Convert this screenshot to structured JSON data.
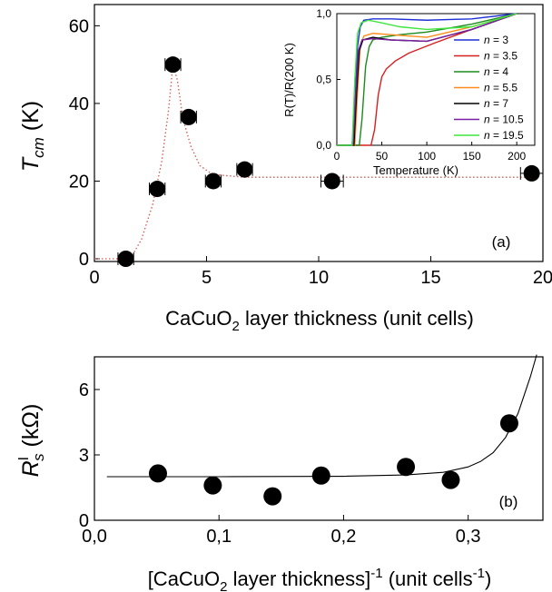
{
  "chart_data": [
    {
      "panel": "a",
      "type": "scatter",
      "panel_label": "(a)",
      "xlabel": "CaCuO2 layer thickness (unit cells)",
      "xlabel_parts": {
        "pre": "CaCuO",
        "sub": "2",
        "post": " layer thickness (unit cells)"
      },
      "ylabel_parts": {
        "main": "T",
        "sub": "cm",
        "post": " (K)"
      },
      "xlim": [
        0,
        20
      ],
      "ylim": [
        0,
        65
      ],
      "xticks": [
        0,
        5,
        10,
        15,
        20
      ],
      "yticks": [
        0,
        20,
        40,
        60
      ],
      "points": [
        {
          "x": 1.4,
          "y": 0,
          "xerr": 0.35
        },
        {
          "x": 2.8,
          "y": 18,
          "xerr": 0.35
        },
        {
          "x": 3.5,
          "y": 50,
          "xerr": 0.35
        },
        {
          "x": 4.2,
          "y": 36.5,
          "xerr": 0.35
        },
        {
          "x": 5.3,
          "y": 20,
          "xerr": 0.35
        },
        {
          "x": 6.7,
          "y": 23,
          "xerr": 0.35
        },
        {
          "x": 10.6,
          "y": 20,
          "xerr": 0.5
        },
        {
          "x": 19.5,
          "y": 22,
          "xerr": 0.5
        }
      ],
      "guide_line": {
        "style": "dotted",
        "color": "#d9534f",
        "x": [
          0,
          1.6,
          2.1,
          2.6,
          3.0,
          3.3,
          3.5,
          3.7,
          3.95,
          4.3,
          4.7,
          5.2,
          5.7,
          6.7,
          10.6,
          19.5
        ],
        "y": [
          0,
          0,
          5,
          14,
          25,
          38,
          50,
          46,
          36,
          29,
          24,
          22,
          21.5,
          21,
          21,
          21
        ]
      }
    },
    {
      "panel": "a-inset",
      "type": "line",
      "xlabel": "Temperature (K)",
      "ylabel": "R(T)/R(200 K)",
      "xlim": [
        0,
        220
      ],
      "ylim": [
        0,
        1
      ],
      "xticks": [
        0,
        50,
        100,
        150,
        200
      ],
      "yticks": [
        0,
        0.5,
        1
      ],
      "xtick_labels": [
        "0",
        "50",
        "100",
        "150",
        "200"
      ],
      "ytick_labels": [
        "0,0",
        "0,5",
        "1,0"
      ],
      "series": [
        {
          "name": "n = 3",
          "label_n": "3",
          "color": "#1f2fd6",
          "x": [
            0,
            17,
            20,
            23,
            26,
            30,
            40,
            60,
            100,
            150,
            200
          ],
          "y": [
            0,
            0,
            0.3,
            0.75,
            0.9,
            0.95,
            0.96,
            0.96,
            0.95,
            0.96,
            1.0
          ]
        },
        {
          "name": "n = 3.5",
          "label_n": "3.5",
          "color": "#d62020",
          "x": [
            0,
            38,
            42,
            46,
            50,
            55,
            65,
            80,
            110,
            150,
            200
          ],
          "y": [
            0,
            0,
            0.12,
            0.38,
            0.52,
            0.58,
            0.64,
            0.7,
            0.78,
            0.88,
            1.0
          ]
        },
        {
          "name": "n = 4",
          "label_n": "4",
          "color": "#1e8a1e",
          "x": [
            0,
            25,
            28,
            32,
            36,
            40,
            50,
            70,
            100,
            150,
            200
          ],
          "y": [
            0,
            0,
            0.2,
            0.6,
            0.75,
            0.8,
            0.82,
            0.84,
            0.86,
            0.92,
            1.0
          ]
        },
        {
          "name": "n = 5.5",
          "label_n": "5.5",
          "color": "#ff8c1a",
          "x": [
            0,
            20,
            23,
            26,
            30,
            40,
            60,
            100,
            150,
            200
          ],
          "y": [
            0,
            0,
            0.4,
            0.75,
            0.83,
            0.85,
            0.84,
            0.82,
            0.9,
            1.0
          ]
        },
        {
          "name": "n = 7",
          "label_n": "7",
          "color": "#000000",
          "x": [
            0,
            19,
            22,
            25,
            29,
            40,
            60,
            100,
            150,
            200
          ],
          "y": [
            0,
            0,
            0.4,
            0.72,
            0.8,
            0.82,
            0.8,
            0.79,
            0.88,
            1.0
          ]
        },
        {
          "name": "n = 10.5",
          "label_n": "10.5",
          "color": "#7b1fa2",
          "x": [
            0,
            18,
            21,
            24,
            28,
            40,
            60,
            100,
            150,
            200
          ],
          "y": [
            0,
            0,
            0.4,
            0.72,
            0.8,
            0.81,
            0.8,
            0.79,
            0.88,
            1.0
          ]
        },
        {
          "name": "n = 19.5",
          "label_n": "19.5",
          "color": "#3ee63e",
          "x": [
            0,
            17,
            20,
            23,
            27,
            35,
            50,
            70,
            100,
            150,
            200
          ],
          "y": [
            0,
            0,
            0.5,
            0.85,
            0.93,
            0.95,
            0.93,
            0.9,
            0.88,
            0.9,
            1.0
          ]
        }
      ]
    },
    {
      "panel": "b",
      "type": "scatter",
      "panel_label": "(b)",
      "xlabel_parts": {
        "pre": "[CaCuO",
        "sub": "2",
        "mid": " layer thickness]",
        "sup": "-1",
        "mid2": " (unit cells",
        "sup2": "-1",
        "post": ")"
      },
      "ylabel_parts": {
        "main": "R",
        "sup": "I",
        "sub": "s",
        "post": " (kΩ)"
      },
      "xlim": [
        0,
        0.36
      ],
      "ylim": [
        0,
        7.5
      ],
      "xticks": [
        0,
        0.1,
        0.2,
        0.3
      ],
      "xtick_labels": [
        "0,0",
        "0,1",
        "0,2",
        "0,3"
      ],
      "yticks": [
        0,
        3,
        6
      ],
      "points": [
        {
          "x": 0.051,
          "y": 2.15
        },
        {
          "x": 0.095,
          "y": 1.6
        },
        {
          "x": 0.143,
          "y": 1.1
        },
        {
          "x": 0.182,
          "y": 2.05
        },
        {
          "x": 0.25,
          "y": 2.45
        },
        {
          "x": 0.286,
          "y": 1.85
        },
        {
          "x": 0.333,
          "y": 4.45
        }
      ],
      "fit_line": {
        "x": [
          0.01,
          0.1,
          0.2,
          0.25,
          0.28,
          0.3,
          0.31,
          0.32,
          0.33,
          0.34,
          0.35,
          0.355
        ],
        "y": [
          2.0,
          2.0,
          2.02,
          2.08,
          2.2,
          2.45,
          2.7,
          3.1,
          3.8,
          4.9,
          6.6,
          7.6
        ]
      }
    }
  ]
}
